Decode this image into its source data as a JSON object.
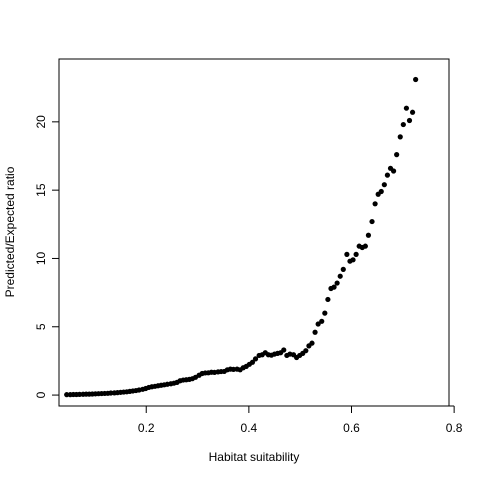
{
  "chart_data": {
    "type": "scatter",
    "title": "",
    "xlabel": "Habitat suitability",
    "ylabel": "Predicted/Expected ratio",
    "xlim": [
      0.03,
      0.79
    ],
    "ylim": [
      -0.8,
      24.6
    ],
    "xticks": [
      0.2,
      0.4,
      0.6,
      0.8
    ],
    "xtick_labels": [
      "0.2",
      "0.4",
      "0.6",
      "0.8"
    ],
    "yticks": [
      0,
      5,
      10,
      15,
      20
    ],
    "ytick_labels": [
      "0",
      "5",
      "10",
      "15",
      "20"
    ],
    "grid": false,
    "legend": "none",
    "marker_color": "#000000",
    "points": [
      [
        0.045,
        0.03
      ],
      [
        0.052,
        0.03
      ],
      [
        0.058,
        0.04
      ],
      [
        0.064,
        0.04
      ],
      [
        0.07,
        0.05
      ],
      [
        0.077,
        0.06
      ],
      [
        0.083,
        0.07
      ],
      [
        0.089,
        0.07
      ],
      [
        0.095,
        0.08
      ],
      [
        0.101,
        0.09
      ],
      [
        0.107,
        0.1
      ],
      [
        0.113,
        0.11
      ],
      [
        0.119,
        0.12
      ],
      [
        0.125,
        0.13
      ],
      [
        0.131,
        0.15
      ],
      [
        0.138,
        0.16
      ],
      [
        0.144,
        0.18
      ],
      [
        0.15,
        0.2
      ],
      [
        0.156,
        0.22
      ],
      [
        0.162,
        0.24
      ],
      [
        0.168,
        0.27
      ],
      [
        0.174,
        0.3
      ],
      [
        0.18,
        0.33
      ],
      [
        0.186,
        0.37
      ],
      [
        0.193,
        0.42
      ],
      [
        0.199,
        0.48
      ],
      [
        0.205,
        0.56
      ],
      [
        0.211,
        0.61
      ],
      [
        0.217,
        0.64
      ],
      [
        0.223,
        0.68
      ],
      [
        0.229,
        0.72
      ],
      [
        0.235,
        0.75
      ],
      [
        0.241,
        0.79
      ],
      [
        0.248,
        0.83
      ],
      [
        0.254,
        0.87
      ],
      [
        0.26,
        0.93
      ],
      [
        0.266,
        1.05
      ],
      [
        0.272,
        1.1
      ],
      [
        0.278,
        1.12
      ],
      [
        0.284,
        1.15
      ],
      [
        0.29,
        1.2
      ],
      [
        0.296,
        1.3
      ],
      [
        0.303,
        1.45
      ],
      [
        0.309,
        1.58
      ],
      [
        0.315,
        1.62
      ],
      [
        0.321,
        1.63
      ],
      [
        0.327,
        1.67
      ],
      [
        0.333,
        1.66
      ],
      [
        0.34,
        1.7
      ],
      [
        0.346,
        1.72
      ],
      [
        0.352,
        1.73
      ],
      [
        0.358,
        1.85
      ],
      [
        0.364,
        1.9
      ],
      [
        0.37,
        1.88
      ],
      [
        0.377,
        1.9
      ],
      [
        0.383,
        1.85
      ],
      [
        0.389,
        2.0
      ],
      [
        0.395,
        2.1
      ],
      [
        0.401,
        2.25
      ],
      [
        0.407,
        2.4
      ],
      [
        0.413,
        2.65
      ],
      [
        0.42,
        2.9
      ],
      [
        0.426,
        2.95
      ],
      [
        0.432,
        3.1
      ],
      [
        0.438,
        2.95
      ],
      [
        0.444,
        2.92
      ],
      [
        0.45,
        3.0
      ],
      [
        0.456,
        3.05
      ],
      [
        0.462,
        3.1
      ],
      [
        0.468,
        3.3
      ],
      [
        0.474,
        2.9
      ],
      [
        0.48,
        3.0
      ],
      [
        0.487,
        2.95
      ],
      [
        0.493,
        2.75
      ],
      [
        0.499,
        2.9
      ],
      [
        0.505,
        3.05
      ],
      [
        0.511,
        3.25
      ],
      [
        0.517,
        3.6
      ],
      [
        0.523,
        3.8
      ],
      [
        0.529,
        4.6
      ],
      [
        0.535,
        5.2
      ],
      [
        0.542,
        5.4
      ],
      [
        0.548,
        6.0
      ],
      [
        0.554,
        7.0
      ],
      [
        0.56,
        7.8
      ],
      [
        0.566,
        7.9
      ],
      [
        0.572,
        8.2
      ],
      [
        0.578,
        8.7
      ],
      [
        0.584,
        9.2
      ],
      [
        0.591,
        10.3
      ],
      [
        0.597,
        9.8
      ],
      [
        0.603,
        9.9
      ],
      [
        0.609,
        10.3
      ],
      [
        0.615,
        10.9
      ],
      [
        0.621,
        10.8
      ],
      [
        0.627,
        10.9
      ],
      [
        0.633,
        11.7
      ],
      [
        0.64,
        12.7
      ],
      [
        0.646,
        14.0
      ],
      [
        0.652,
        14.7
      ],
      [
        0.658,
        14.9
      ],
      [
        0.664,
        15.4
      ],
      [
        0.67,
        16.1
      ],
      [
        0.676,
        16.6
      ],
      [
        0.682,
        16.4
      ],
      [
        0.688,
        17.6
      ],
      [
        0.695,
        18.9
      ],
      [
        0.701,
        19.8
      ],
      [
        0.707,
        21.0
      ],
      [
        0.713,
        20.1
      ],
      [
        0.719,
        20.7
      ],
      [
        0.725,
        23.1
      ]
    ]
  }
}
